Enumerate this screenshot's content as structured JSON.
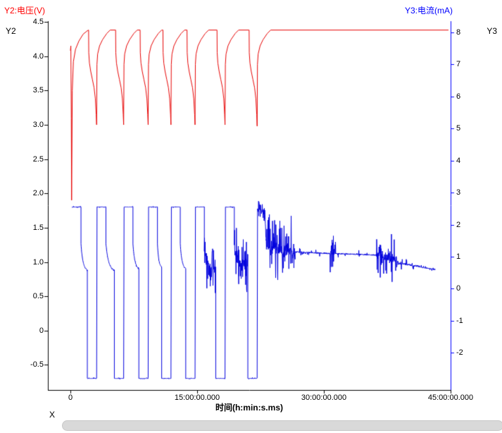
{
  "chart_data": {
    "type": "line",
    "title": "",
    "x_axis": {
      "name": "X",
      "title": "时间(h:min:s.ms)",
      "tick_labels": [
        "0",
        "15:00:00.000",
        "30:00:00.000",
        "45:00:00.000"
      ],
      "tick_values_hours": [
        0,
        15,
        30,
        45
      ],
      "range_hours": [
        -2.67,
        45.0
      ]
    },
    "left_axis": {
      "name": "Y2",
      "title": "Y2:电压(V)",
      "unit": "V",
      "color": "#ff0000",
      "tick_labels": [
        "4.5",
        "4.0",
        "3.5",
        "3.0",
        "2.5",
        "2.0",
        "1.5",
        "1.0",
        "0.5",
        "0",
        "-0.5"
      ],
      "tick_values": [
        4.5,
        4,
        3.5,
        3,
        2.5,
        2,
        1.5,
        1,
        0.5,
        0,
        -0.5
      ],
      "range": [
        -0.865,
        4.51
      ]
    },
    "right_axis": {
      "name": "Y3",
      "title": "Y3:电流(mA)",
      "unit": "mA",
      "color": "#0000ff",
      "tick_labels": [
        "8",
        "7",
        "6",
        "5",
        "4",
        "3",
        "2",
        "1",
        "0",
        "-1",
        "-2"
      ],
      "tick_values": [
        8,
        7,
        6,
        5,
        4,
        3,
        2,
        1,
        0,
        -1,
        -2
      ],
      "range": [
        -3.16,
        8.35
      ]
    },
    "series": [
      {
        "name": "电压",
        "axis": "left",
        "color": "#e60000",
        "points": [
          [
            0,
            4.08
          ],
          [
            0.05,
            4.15
          ],
          [
            0.1,
            3.1
          ],
          [
            0.14,
            1.9
          ],
          [
            0.22,
            3.5
          ],
          [
            0.35,
            3.92
          ],
          [
            0.6,
            4.1
          ],
          [
            1,
            4.22
          ],
          [
            1.5,
            4.32
          ],
          [
            2,
            4.37
          ],
          [
            2.15,
            4.38
          ],
          [
            2.17,
            4.05
          ],
          [
            2.25,
            3.9
          ],
          [
            2.4,
            3.78
          ],
          [
            2.6,
            3.66
          ],
          [
            2.8,
            3.54
          ],
          [
            2.95,
            3.38
          ],
          [
            3.05,
            3.15
          ],
          [
            3.1,
            3
          ],
          [
            3.14,
            3.88
          ],
          [
            3.22,
            4.03
          ],
          [
            3.45,
            4.15
          ],
          [
            3.8,
            4.24
          ],
          [
            4.3,
            4.33
          ],
          [
            4.7,
            4.38
          ],
          [
            5.35,
            4.38
          ],
          [
            5.37,
            4.05
          ],
          [
            5.45,
            3.9
          ],
          [
            5.6,
            3.78
          ],
          [
            5.8,
            3.66
          ],
          [
            6,
            3.54
          ],
          [
            6.15,
            3.38
          ],
          [
            6.25,
            3.15
          ],
          [
            6.3,
            3
          ],
          [
            6.34,
            3.88
          ],
          [
            6.42,
            4.03
          ],
          [
            6.65,
            4.15
          ],
          [
            7,
            4.24
          ],
          [
            7.5,
            4.33
          ],
          [
            7.9,
            4.38
          ],
          [
            8.25,
            4.38
          ],
          [
            8.27,
            4.05
          ],
          [
            8.35,
            3.9
          ],
          [
            8.5,
            3.78
          ],
          [
            8.7,
            3.66
          ],
          [
            8.9,
            3.54
          ],
          [
            9.05,
            3.38
          ],
          [
            9.15,
            3.15
          ],
          [
            9.2,
            3
          ],
          [
            9.24,
            3.88
          ],
          [
            9.32,
            4.03
          ],
          [
            9.55,
            4.15
          ],
          [
            9.9,
            4.24
          ],
          [
            10.4,
            4.33
          ],
          [
            10.8,
            4.38
          ],
          [
            10.95,
            4.38
          ],
          [
            10.97,
            4.05
          ],
          [
            11.05,
            3.9
          ],
          [
            11.2,
            3.78
          ],
          [
            11.4,
            3.66
          ],
          [
            11.6,
            3.54
          ],
          [
            11.75,
            3.38
          ],
          [
            11.85,
            3.15
          ],
          [
            11.9,
            3
          ],
          [
            11.94,
            3.88
          ],
          [
            12.02,
            4.03
          ],
          [
            12.25,
            4.15
          ],
          [
            12.6,
            4.24
          ],
          [
            13.1,
            4.33
          ],
          [
            13.5,
            4.38
          ],
          [
            13.8,
            4.38
          ],
          [
            13.82,
            4.05
          ],
          [
            13.9,
            3.9
          ],
          [
            14.05,
            3.78
          ],
          [
            14.25,
            3.66
          ],
          [
            14.45,
            3.54
          ],
          [
            14.6,
            3.38
          ],
          [
            14.7,
            3.15
          ],
          [
            14.75,
            3
          ],
          [
            14.79,
            3.88
          ],
          [
            14.87,
            4.03
          ],
          [
            15.1,
            4.15
          ],
          [
            15.45,
            4.24
          ],
          [
            15.95,
            4.33
          ],
          [
            16.35,
            4.38
          ],
          [
            17.35,
            4.38
          ],
          [
            17.37,
            4.05
          ],
          [
            17.45,
            3.9
          ],
          [
            17.6,
            3.78
          ],
          [
            17.8,
            3.66
          ],
          [
            18,
            3.54
          ],
          [
            18.15,
            3.38
          ],
          [
            18.25,
            3.15
          ],
          [
            18.3,
            3
          ],
          [
            18.34,
            3.88
          ],
          [
            18.42,
            4.03
          ],
          [
            18.65,
            4.15
          ],
          [
            19,
            4.24
          ],
          [
            19.5,
            4.33
          ],
          [
            19.9,
            4.38
          ],
          [
            21.15,
            4.38
          ],
          [
            21.17,
            4.05
          ],
          [
            21.25,
            3.9
          ],
          [
            21.4,
            3.78
          ],
          [
            21.6,
            3.66
          ],
          [
            21.8,
            3.54
          ],
          [
            21.95,
            3.38
          ],
          [
            22.05,
            3.15
          ],
          [
            22.1,
            2.98
          ],
          [
            22.14,
            3.88
          ],
          [
            22.22,
            4.03
          ],
          [
            22.45,
            4.15
          ],
          [
            22.8,
            4.24
          ],
          [
            23.3,
            4.33
          ],
          [
            23.7,
            4.38
          ],
          [
            44.75,
            4.38
          ]
        ]
      },
      {
        "name": "电流",
        "axis": "right",
        "color": "#0000dd",
        "segments": [
          {
            "t0": 0.2,
            "t1": 1.25,
            "v0": 2.55,
            "v1": 2.55,
            "amp": 0.02
          },
          {
            "t0": 1.25,
            "t1": 2.0,
            "v0": 1.4,
            "v1": 0.55,
            "type": "decay",
            "amp": 0.03
          },
          {
            "t0": 2.0,
            "t1": 3.1,
            "v0": -2.8,
            "v1": -2.8,
            "amp": 0.02
          },
          {
            "t0": 3.15,
            "t1": 4.2,
            "v0": 2.55,
            "v1": 2.55,
            "amp": 0.02
          },
          {
            "t0": 4.2,
            "t1": 5.2,
            "v0": 1.4,
            "v1": 0.55,
            "type": "decay",
            "amp": 0.03
          },
          {
            "t0": 5.2,
            "t1": 6.3,
            "v0": -2.8,
            "v1": -2.8,
            "amp": 0.02
          },
          {
            "t0": 6.35,
            "t1": 7.4,
            "v0": 2.55,
            "v1": 2.55,
            "amp": 0.02
          },
          {
            "t0": 7.4,
            "t1": 8.1,
            "v0": 1.4,
            "v1": 0.6,
            "type": "decay",
            "amp": 0.03
          },
          {
            "t0": 8.1,
            "t1": 9.2,
            "v0": -2.8,
            "v1": -2.8,
            "amp": 0.02
          },
          {
            "t0": 9.25,
            "t1": 10.3,
            "v0": 2.55,
            "v1": 2.55,
            "amp": 0.02
          },
          {
            "t0": 10.3,
            "t1": 10.8,
            "v0": 1.4,
            "v1": 0.65,
            "type": "decay",
            "amp": 0.03
          },
          {
            "t0": 10.8,
            "t1": 11.9,
            "v0": -2.8,
            "v1": -2.8,
            "amp": 0.02
          },
          {
            "t0": 11.95,
            "t1": 13.0,
            "v0": 2.55,
            "v1": 2.55,
            "amp": 0.02
          },
          {
            "t0": 13.0,
            "t1": 13.65,
            "v0": 1.4,
            "v1": 0.6,
            "type": "decay",
            "amp": 0.03
          },
          {
            "t0": 13.65,
            "t1": 14.75,
            "v0": -2.8,
            "v1": -2.8,
            "amp": 0.02
          },
          {
            "t0": 14.8,
            "t1": 15.85,
            "v0": 2.55,
            "v1": 2.55,
            "amp": 0.02
          },
          {
            "t0": 15.85,
            "t1": 17.2,
            "v0": 1.25,
            "v1": 0.6,
            "type": "decay",
            "amp": 0.8,
            "spike": 0.5
          },
          {
            "t0": 17.2,
            "t1": 18.3,
            "v0": -2.8,
            "v1": -2.8,
            "amp": 0.02
          },
          {
            "t0": 18.35,
            "t1": 19.4,
            "v0": 2.55,
            "v1": 2.55,
            "amp": 0.02
          },
          {
            "t0": 19.4,
            "t1": 21.0,
            "v0": 1.25,
            "v1": 0.6,
            "type": "decay",
            "amp": 0.8,
            "spike": 0.5
          },
          {
            "t0": 21.0,
            "t1": 22.1,
            "v0": -2.8,
            "v1": -2.8,
            "amp": 0.02
          },
          {
            "t0": 22.15,
            "t1": 23.0,
            "v0": 2.45,
            "v1": 2.45,
            "amp": 0.3,
            "spike": 0.5
          },
          {
            "t0": 23.0,
            "t1": 23.15,
            "v0": 2.45,
            "v1": 1.6,
            "amp": 0.1
          },
          {
            "t0": 23.15,
            "t1": 26.6,
            "v0": 1.35,
            "v1": 1.15,
            "amp": 1.0,
            "spike": 0.45
          },
          {
            "t0": 26.6,
            "t1": 30.7,
            "v0": 1.15,
            "v1": 1.1,
            "amp": 0.12,
            "spike": 0.08
          },
          {
            "t0": 30.7,
            "t1": 31.4,
            "v0": 1.15,
            "v1": 1.15,
            "amp": 0.5,
            "spike": 0.4
          },
          {
            "t0": 31.4,
            "t1": 36.2,
            "v0": 1.1,
            "v1": 1.05,
            "amp": 0.1,
            "spike": 0.07
          },
          {
            "t0": 36.2,
            "t1": 38.6,
            "v0": 1.05,
            "v1": 0.9,
            "amp": 0.6,
            "spike": 0.45
          },
          {
            "t0": 38.6,
            "t1": 41.3,
            "v0": 0.8,
            "v1": 0.7,
            "amp": 0.14,
            "spike": 0.12
          },
          {
            "t0": 41.3,
            "t1": 43.2,
            "v0": 0.68,
            "v1": 0.6,
            "amp": 0.07,
            "spike": 0.1
          }
        ]
      }
    ]
  }
}
